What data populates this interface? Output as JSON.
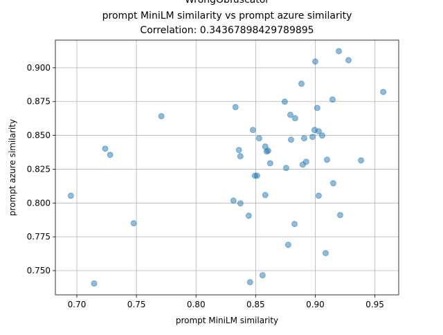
{
  "chart_data": {
    "type": "scatter",
    "title": [
      "WrongObfuscator",
      "prompt MiniLM similarity vs prompt azure similarity",
      "Correlation: 0.34367898429789895"
    ],
    "xlabel": "prompt MiniLM similarity",
    "ylabel": "prompt azure similarity",
    "xlim": [
      0.682,
      0.97
    ],
    "ylim": [
      0.7321,
      0.9204
    ],
    "xticks": [
      {
        "value": 0.7,
        "label": "0.70"
      },
      {
        "value": 0.75,
        "label": "0.75"
      },
      {
        "value": 0.8,
        "label": "0.80"
      },
      {
        "value": 0.85,
        "label": "0.85"
      },
      {
        "value": 0.9,
        "label": "0.90"
      },
      {
        "value": 0.95,
        "label": "0.95"
      }
    ],
    "yticks": [
      {
        "value": 0.75,
        "label": "0.750"
      },
      {
        "value": 0.775,
        "label": "0.775"
      },
      {
        "value": 0.8,
        "label": "0.800"
      },
      {
        "value": 0.825,
        "label": "0.825"
      },
      {
        "value": 0.85,
        "label": "0.850"
      },
      {
        "value": 0.875,
        "label": "0.875"
      },
      {
        "value": 0.9,
        "label": "0.900"
      }
    ],
    "grid": true,
    "series": [
      {
        "color": "#1f77b4",
        "x": [
          0.695,
          0.7145,
          0.7238,
          0.7279,
          0.7477,
          0.7709,
          0.8314,
          0.8331,
          0.836,
          0.8372,
          0.8372,
          0.8442,
          0.8453,
          0.8477,
          0.8494,
          0.8512,
          0.8529,
          0.8558,
          0.8581,
          0.8581,
          0.8593,
          0.8605,
          0.8622,
          0.8744,
          0.8756,
          0.8773,
          0.8791,
          0.8797,
          0.8826,
          0.8831,
          0.8884,
          0.8895,
          0.8907,
          0.8924,
          0.8977,
          0.8994,
          0.9,
          0.9017,
          0.9029,
          0.9029,
          0.9058,
          0.9087,
          0.9099,
          0.9145,
          0.9151,
          0.9198,
          0.9209,
          0.9279,
          0.9384,
          0.957
        ],
        "values": [
          0.8054,
          0.7405,
          0.8402,
          0.8356,
          0.785,
          0.8642,
          0.8018,
          0.8709,
          0.8392,
          0.8346,
          0.7998,
          0.7906,
          0.7415,
          0.854,
          0.8202,
          0.8202,
          0.8479,
          0.7466,
          0.8417,
          0.8059,
          0.8381,
          0.8387,
          0.8294,
          0.8749,
          0.8259,
          0.7691,
          0.8652,
          0.8468,
          0.7845,
          0.8627,
          0.8882,
          0.8284,
          0.8479,
          0.8305,
          0.8489,
          0.854,
          0.9046,
          0.8703,
          0.853,
          0.8054,
          0.8499,
          0.763,
          0.832,
          0.8765,
          0.8146,
          0.9123,
          0.7911,
          0.9056,
          0.8315,
          0.8821
        ]
      }
    ]
  }
}
